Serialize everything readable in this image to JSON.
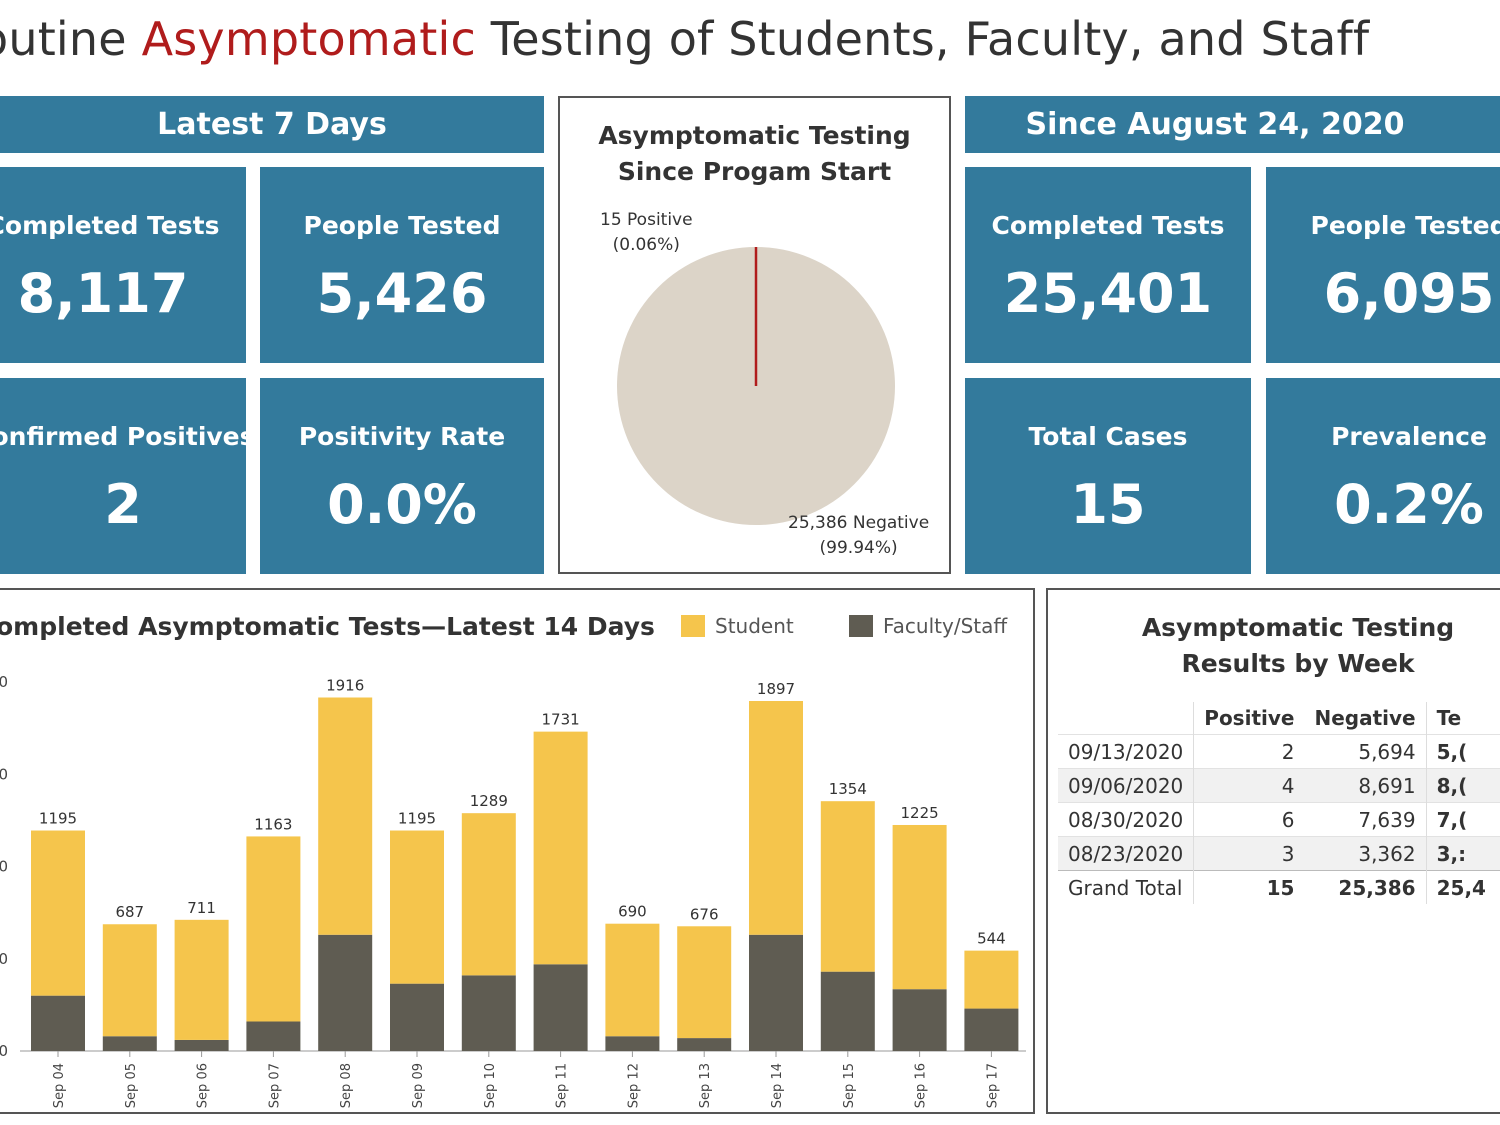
{
  "header": {
    "title_pre": "outine ",
    "title_highlight": "Asymptomatic",
    "title_post": " Testing of Students, Faculty, and Staff"
  },
  "latest7": {
    "band": "Latest 7 Days",
    "completed_label": "Completed Tests",
    "completed_value": "8,117",
    "people_label": "People Tested",
    "people_value": "5,426",
    "positives_label": "onfirmed Positives",
    "positives_value": "2",
    "rate_label": "Positivity Rate",
    "rate_value": "0.0%"
  },
  "since": {
    "band": "Since August 24, 2020",
    "completed_label": "Completed Tests",
    "completed_value": "25,401",
    "people_label": "People Tested",
    "people_value": "6,095",
    "cases_label": "Total Cases",
    "cases_value": "15",
    "prev_label": "Prevalence",
    "prev_value": "0.2%"
  },
  "pie": {
    "title_line1": "Asymptomatic Testing",
    "title_line2": "Since Progam Start",
    "positive_line1": "15  Positive",
    "positive_line2": "(0.06%)",
    "negative_line1": "25,386  Negative",
    "negative_line2": "(99.94%)"
  },
  "weekly": {
    "title_line1": "Asymptomatic Testing",
    "title_line2": "Results by Week",
    "headers": [
      "",
      "Positive",
      "Negative",
      "Te"
    ],
    "rows": [
      {
        "week": "09/13/2020",
        "positive": "2",
        "negative": "5,694",
        "total": "5,("
      },
      {
        "week": "09/06/2020",
        "positive": "4",
        "negative": "8,691",
        "total": "8,("
      },
      {
        "week": "08/30/2020",
        "positive": "6",
        "negative": "7,639",
        "total": "7,("
      },
      {
        "week": "08/23/2020",
        "positive": "3",
        "negative": "3,362",
        "total": "3,:"
      },
      {
        "week": "Grand Total",
        "positive": "15",
        "negative": "25,386",
        "total": "25,4"
      }
    ]
  },
  "colors": {
    "tile": "#337a9c",
    "student": "#f5c54c",
    "faculty": "#5f5c52",
    "pie_negative": "#dcd4c8",
    "pie_positive": "#b01c1c",
    "title_highlight": "#b01c1c"
  },
  "chart_data": [
    {
      "type": "pie",
      "title": "Asymptomatic Testing Since Progam Start",
      "categories": [
        "Positive",
        "Negative"
      ],
      "values": [
        15,
        25386
      ],
      "percent_labels": [
        "0.06%",
        "99.94%"
      ]
    },
    {
      "type": "bar",
      "stacked": true,
      "title": "ompleted Asymptomatic Tests—Latest 14 Days",
      "categories": [
        "Sep 04",
        "Sep 05",
        "Sep 06",
        "Sep 07",
        "Sep 08",
        "Sep 09",
        "Sep 10",
        "Sep 11",
        "Sep 12",
        "Sep 13",
        "Sep 14",
        "Sep 15",
        "Sep 16",
        "Sep 17"
      ],
      "totals": [
        1195,
        687,
        711,
        1163,
        1916,
        1195,
        1289,
        1731,
        690,
        676,
        1897,
        1354,
        1225,
        544
      ],
      "series": [
        {
          "name": "Faculty/Staff",
          "values": [
            300,
            80,
            60,
            160,
            630,
            365,
            410,
            470,
            80,
            70,
            630,
            430,
            335,
            230
          ]
        },
        {
          "name": "Student",
          "values": [
            895,
            607,
            651,
            1003,
            1286,
            830,
            879,
            1261,
            610,
            606,
            1267,
            924,
            890,
            314
          ]
        }
      ],
      "legend": [
        "Student",
        "Faculty/Staff"
      ],
      "y_tick_labels": [
        "0",
        "0",
        "0",
        "0",
        "0"
      ],
      "ylim": [
        0,
        2000
      ],
      "xlabel": "",
      "ylabel": ""
    }
  ]
}
